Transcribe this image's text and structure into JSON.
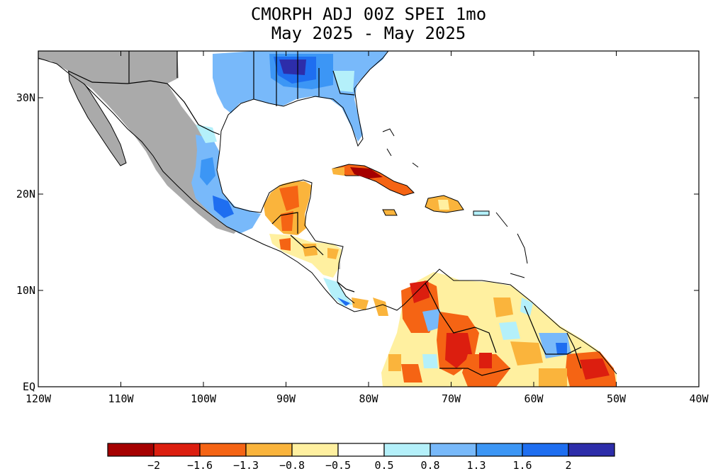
{
  "title": {
    "line1": "CMORPH ADJ 00Z SPEI 1mo",
    "line2": "May 2025 - May 2025"
  },
  "map": {
    "lon_labels": [
      "120W",
      "110W",
      "100W",
      "90W",
      "80W",
      "70W",
      "60W",
      "50W",
      "40W"
    ],
    "lat_labels": [
      "30N",
      "20N",
      "10N",
      "EQ"
    ],
    "no_data_color": "#aaaaaa",
    "ocean_color": "#ffffff"
  },
  "colorbar": {
    "colors": [
      "#a50000",
      "#dc1e0f",
      "#f56414",
      "#fab43c",
      "#fff0a0",
      "#ffffff",
      "#b4f0fa",
      "#78b9fa",
      "#3c96f5",
      "#1e6ef0",
      "#2d2daa"
    ],
    "labels": [
      "-2",
      "-1.6",
      "-1.3",
      "-0.8",
      "-0.5",
      "0.5",
      "0.8",
      "1.3",
      "1.6",
      "2"
    ]
  }
}
